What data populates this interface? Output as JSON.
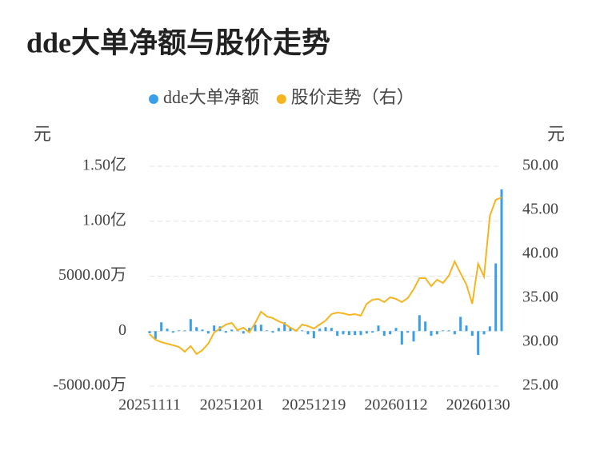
{
  "chart_data": {
    "type": "bar-line",
    "title": "dde大单净额与股价走势",
    "y_label": "元",
    "y2_label": "元",
    "categories": [
      "20251111",
      null,
      null,
      null,
      null,
      null,
      null,
      null,
      null,
      null,
      null,
      null,
      null,
      null,
      "20251201",
      null,
      null,
      null,
      null,
      null,
      null,
      null,
      null,
      null,
      null,
      null,
      null,
      null,
      "20251219",
      null,
      null,
      null,
      null,
      null,
      null,
      null,
      null,
      null,
      null,
      null,
      null,
      null,
      "20260112",
      null,
      null,
      null,
      null,
      null,
      null,
      null,
      null,
      null,
      null,
      null,
      null,
      null,
      "20260130",
      null,
      null,
      null,
      null
    ],
    "series": [
      {
        "name": "dde大单净额",
        "color": "#3a9ee8",
        "type": "bar",
        "values": [
          -2000000,
          -7200000,
          8000000,
          2200000,
          -1400000,
          700000,
          700000,
          10900000,
          3600000,
          1400000,
          -2200000,
          5100000,
          4300000,
          -1400000,
          1400000,
          1400000,
          -2200000,
          2900000,
          5800000,
          5800000,
          700000,
          -1400000,
          2900000,
          8000000,
          3600000,
          1400000,
          700000,
          -2900000,
          -6500000,
          2200000,
          3600000,
          2900000,
          -4300000,
          -2900000,
          -3600000,
          -3600000,
          -3600000,
          -2200000,
          -1400000,
          5100000,
          -4300000,
          -2900000,
          2900000,
          -12300000,
          -1400000,
          -9400000,
          14500000,
          8700000,
          -4300000,
          -2900000,
          700000,
          700000,
          -2900000,
          13000000,
          5100000,
          -4300000,
          -21700000,
          -2900000,
          4300000,
          61600000,
          129000000
        ]
      },
      {
        "name": "股价走势（右）",
        "color": "#f5b520",
        "type": "line",
        "axis": "y2",
        "values": [
          30.91,
          30.27,
          30.0,
          29.82,
          29.64,
          29.45,
          28.91,
          29.55,
          28.64,
          29.09,
          29.82,
          31.09,
          31.55,
          32.0,
          32.18,
          31.36,
          31.64,
          31.09,
          32.18,
          33.45,
          32.91,
          32.73,
          32.36,
          32.09,
          31.64,
          31.27,
          32.0,
          31.82,
          31.55,
          32.0,
          32.45,
          33.18,
          33.36,
          33.27,
          33.09,
          33.18,
          33.0,
          34.36,
          34.82,
          34.91,
          34.55,
          35.09,
          34.91,
          34.55,
          35.0,
          36.0,
          37.27,
          37.27,
          36.36,
          37.09,
          36.73,
          37.55,
          39.18,
          37.82,
          36.55,
          34.36,
          38.91,
          37.45,
          44.36,
          46.18,
          46.45
        ]
      }
    ],
    "ylim": [
      -50000000,
      150000000
    ],
    "yticks": [
      {
        "value": -50000000,
        "label": "-5000.00万"
      },
      0,
      {
        "value": 50000000,
        "label": "5000.00万"
      },
      {
        "value": 100000000,
        "label": "1.00亿"
      },
      {
        "value": 150000000,
        "label": "1.50亿"
      }
    ],
    "y2lim": [
      25,
      50
    ],
    "y2ticks": [
      {
        "value": 25,
        "label": "25.00"
      },
      {
        "value": 30,
        "label": "30.00"
      },
      {
        "value": 35,
        "label": "35.00"
      },
      {
        "value": 40,
        "label": "40.00"
      },
      {
        "value": 45,
        "label": "45.00"
      },
      {
        "value": 50,
        "label": "50.00"
      }
    ],
    "grid": true
  }
}
